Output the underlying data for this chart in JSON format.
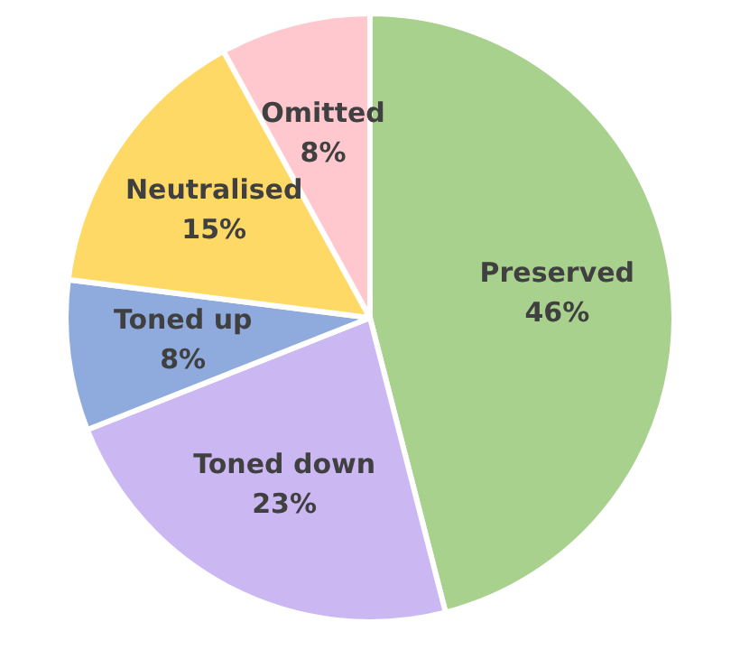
{
  "chart_data": {
    "type": "pie",
    "categories": [
      "Preserved",
      "Toned down",
      "Toned up",
      "Neutralised",
      "Omitted"
    ],
    "values": [
      46,
      23,
      8,
      15,
      8
    ],
    "value_labels": [
      "46%",
      "23%",
      "8%",
      "15%",
      "8%"
    ],
    "colors": [
      "#a9d18e",
      "#cbb8f2",
      "#8faadc",
      "#ffd966",
      "#ffc7ce"
    ]
  }
}
